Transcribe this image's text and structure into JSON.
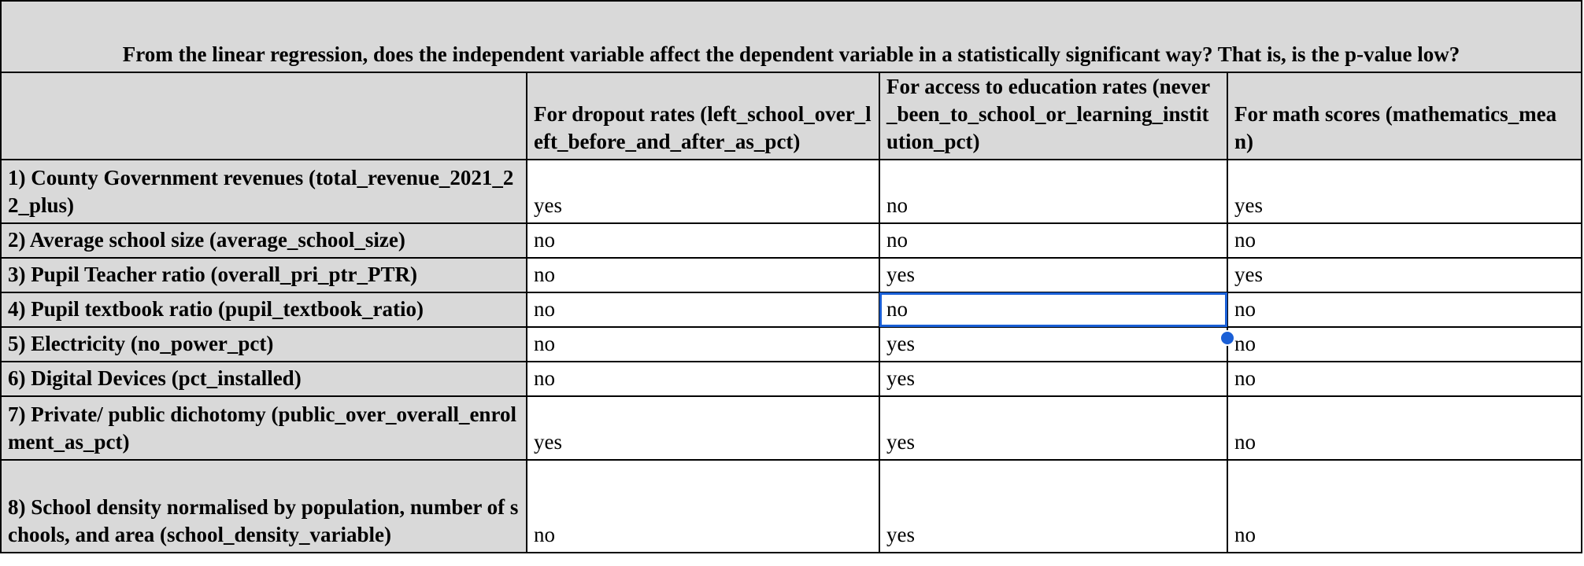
{
  "title": "From the linear regression, does the independent variable affect the dependent variable in a statistically significant way? That is, is the p-value low?",
  "columns": [
    "",
    "For dropout rates (left_school_over_left_before_and_after_as_pct)",
    "For access to education rates (never_been_to_school_or_learning_institution_pct)",
    "For math scores (mathematics_mean)"
  ],
  "rows": [
    {
      "label": "1) County Government revenues (total_revenue_2021_22_plus)",
      "values": [
        "yes",
        "no",
        "yes"
      ]
    },
    {
      "label": "2) Average school size (average_school_size)",
      "values": [
        "no",
        "no",
        "no"
      ]
    },
    {
      "label": "3) Pupil Teacher ratio (overall_pri_ptr_PTR)",
      "values": [
        "no",
        "yes",
        "yes"
      ]
    },
    {
      "label": "4) Pupil textbook ratio (pupil_textbook_ratio)",
      "values": [
        "no",
        "no",
        "no"
      ]
    },
    {
      "label": "5) Electricity (no_power_pct)",
      "values": [
        "no",
        "yes",
        "no"
      ]
    },
    {
      "label": "6) Digital Devices (pct_installed)",
      "values": [
        "no",
        "yes",
        "no"
      ]
    },
    {
      "label": "7) Private/ public dichotomy (public_over_overall_enrolment_as_pct)",
      "values": [
        "yes",
        "yes",
        "no"
      ]
    },
    {
      "label": "8) School density normalised by population, number of schools, and area (school_density_variable)",
      "values": [
        "no",
        "yes",
        "no"
      ]
    }
  ],
  "colors": {
    "header_fill": "#d9d9d9",
    "selection": "#1a5fd6"
  }
}
